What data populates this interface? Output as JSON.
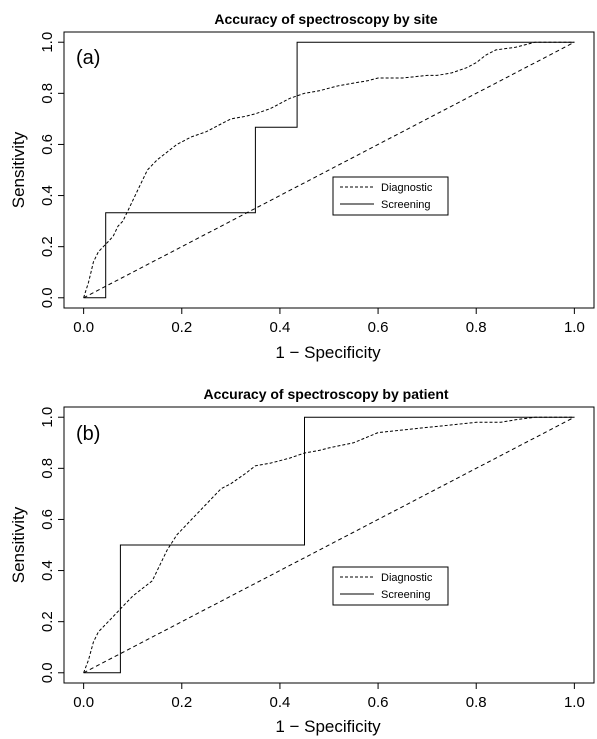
{
  "chart_data": [
    {
      "type": "line",
      "title": "Accuracy of spectroscopy by site",
      "panel_label": "(a)",
      "xlabel": "1 − Specificity",
      "ylabel": "Sensitivity",
      "xlim": [
        -0.04,
        1.04
      ],
      "ylim": [
        -0.04,
        1.04
      ],
      "xticks": [
        "0.0",
        "0.2",
        "0.4",
        "0.6",
        "0.8",
        "1.0"
      ],
      "yticks": [
        "0.0",
        "0.2",
        "0.4",
        "0.6",
        "0.8",
        "1.0"
      ],
      "grid": false,
      "legend": "center-right",
      "series": [
        {
          "name": "Diagnostic",
          "style": "dashed",
          "x": [
            0.0,
            0.01,
            0.015,
            0.02,
            0.03,
            0.04,
            0.05,
            0.06,
            0.07,
            0.08,
            0.09,
            0.1,
            0.11,
            0.12,
            0.13,
            0.15,
            0.17,
            0.19,
            0.2,
            0.22,
            0.25,
            0.28,
            0.3,
            0.33,
            0.35,
            0.38,
            0.4,
            0.42,
            0.45,
            0.48,
            0.5,
            0.52,
            0.55,
            0.58,
            0.6,
            0.65,
            0.7,
            0.72,
            0.75,
            0.78,
            0.8,
            0.82,
            0.84,
            0.88,
            0.92,
            0.96,
            1.0
          ],
          "y": [
            0.0,
            0.06,
            0.1,
            0.14,
            0.18,
            0.2,
            0.22,
            0.24,
            0.28,
            0.3,
            0.34,
            0.38,
            0.42,
            0.46,
            0.5,
            0.54,
            0.57,
            0.6,
            0.61,
            0.63,
            0.65,
            0.68,
            0.7,
            0.71,
            0.72,
            0.74,
            0.76,
            0.78,
            0.8,
            0.81,
            0.82,
            0.83,
            0.84,
            0.85,
            0.86,
            0.86,
            0.87,
            0.87,
            0.88,
            0.9,
            0.92,
            0.95,
            0.97,
            0.98,
            1.0,
            1.0,
            1.0
          ]
        },
        {
          "name": "Screening",
          "style": "solid",
          "x": [
            0.0,
            0.045,
            0.045,
            0.35,
            0.35,
            0.435,
            0.435,
            1.0
          ],
          "y": [
            0.0,
            0.0,
            0.333,
            0.333,
            0.667,
            0.667,
            1.0,
            1.0
          ]
        }
      ],
      "reference_line": {
        "x": [
          0.0,
          1.0
        ],
        "y": [
          0.0,
          1.0
        ]
      }
    },
    {
      "type": "line",
      "title": "Accuracy of spectroscopy by patient",
      "panel_label": "(b)",
      "xlabel": "1 − Specificity",
      "ylabel": "Sensitivity",
      "xlim": [
        -0.04,
        1.04
      ],
      "ylim": [
        -0.04,
        1.04
      ],
      "xticks": [
        "0.0",
        "0.2",
        "0.4",
        "0.6",
        "0.8",
        "1.0"
      ],
      "yticks": [
        "0.0",
        "0.2",
        "0.4",
        "0.6",
        "0.8",
        "1.0"
      ],
      "grid": false,
      "legend": "center-right",
      "series": [
        {
          "name": "Diagnostic",
          "style": "dashed",
          "x": [
            0.0,
            0.01,
            0.02,
            0.03,
            0.05,
            0.06,
            0.08,
            0.09,
            0.1,
            0.12,
            0.14,
            0.15,
            0.17,
            0.19,
            0.2,
            0.22,
            0.25,
            0.28,
            0.3,
            0.33,
            0.35,
            0.38,
            0.4,
            0.42,
            0.45,
            0.48,
            0.5,
            0.55,
            0.6,
            0.65,
            0.7,
            0.75,
            0.8,
            0.85,
            0.88,
            0.92,
            1.0
          ],
          "y": [
            0.0,
            0.05,
            0.12,
            0.16,
            0.2,
            0.22,
            0.26,
            0.28,
            0.3,
            0.33,
            0.36,
            0.4,
            0.48,
            0.54,
            0.56,
            0.6,
            0.66,
            0.72,
            0.74,
            0.78,
            0.81,
            0.82,
            0.83,
            0.84,
            0.86,
            0.87,
            0.88,
            0.9,
            0.94,
            0.95,
            0.96,
            0.97,
            0.98,
            0.98,
            0.99,
            1.0,
            1.0
          ]
        },
        {
          "name": "Screening",
          "style": "solid",
          "x": [
            0.0,
            0.075,
            0.075,
            0.45,
            0.45,
            1.0
          ],
          "y": [
            0.0,
            0.0,
            0.5,
            0.5,
            1.0,
            1.0
          ]
        }
      ],
      "reference_line": {
        "x": [
          0.0,
          1.0
        ],
        "y": [
          0.0,
          1.0
        ]
      }
    }
  ]
}
